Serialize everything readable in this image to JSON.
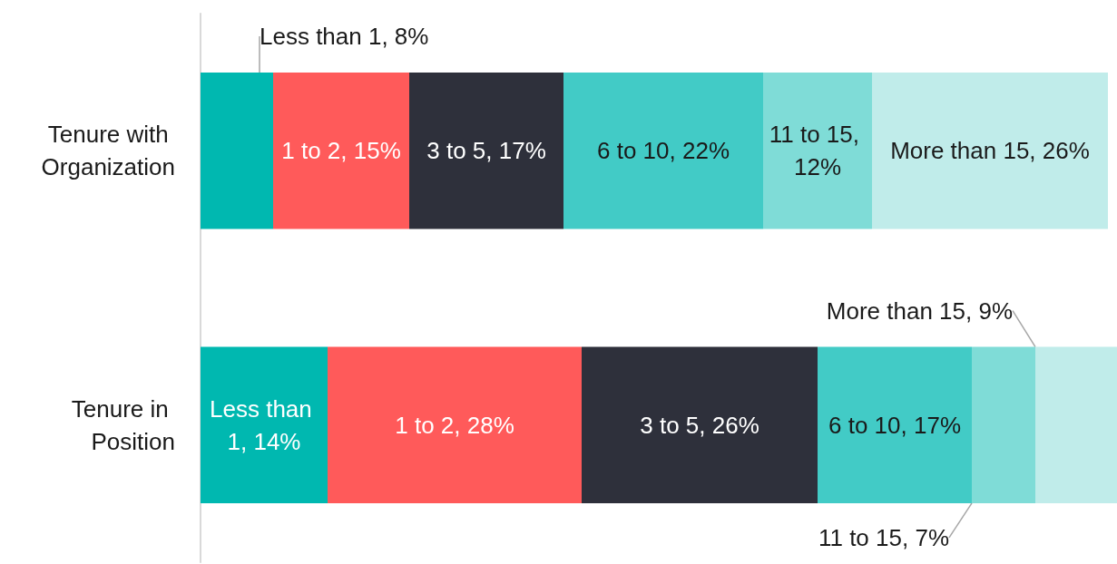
{
  "chart_data": {
    "type": "bar",
    "orientation": "horizontal",
    "stacked": true,
    "categories": [
      "Tenure with Organization",
      "Tenure in Position"
    ],
    "series": [
      {
        "color": "#00b8b0",
        "values": [
          8,
          14
        ],
        "value_labels": [
          "Less than 1, 8%",
          "Less than 1, 14%"
        ]
      },
      {
        "color": "#ff5a5a",
        "values": [
          15,
          28
        ],
        "value_labels": [
          "1 to 2, 15%",
          "1 to 2, 28%"
        ]
      },
      {
        "color": "#2e303b",
        "values": [
          17,
          26
        ],
        "value_labels": [
          "3 to 5, 17%",
          "3 to 5, 26%"
        ]
      },
      {
        "color": "#42cbc6",
        "values": [
          22,
          17
        ],
        "value_labels": [
          "6 to 10, 22%",
          "6 to 10, 17%"
        ]
      },
      {
        "color": "#7fdcd7",
        "values": [
          12,
          7
        ],
        "value_labels": [
          "11 to 15, 12%",
          "11 to 15, 7%"
        ]
      },
      {
        "color": "#c0ecea",
        "values": [
          26,
          9
        ],
        "value_labels": [
          "More than 15, 26%",
          "More than 15, 9%"
        ]
      }
    ]
  }
}
